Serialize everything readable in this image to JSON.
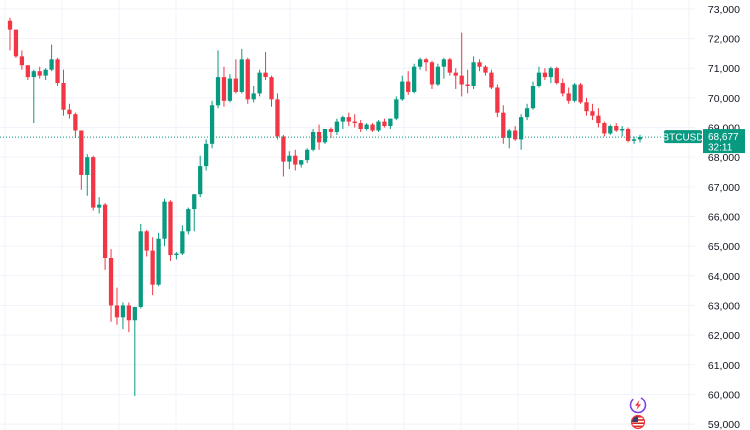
{
  "chart_data": {
    "type": "candlestick",
    "symbol": "BTCUSD",
    "last_price": "68,677",
    "countdown": "32:11",
    "ylim": [
      58800,
      73300
    ],
    "y_ticks": [
      "59,000",
      "60,000",
      "61,000",
      "62,000",
      "63,000",
      "64,000",
      "65,000",
      "66,000",
      "67,000",
      "68,000",
      "69,000",
      "70,000",
      "71,000",
      "72,000",
      "73,000"
    ],
    "y_tick_values": [
      59000,
      60000,
      61000,
      62000,
      63000,
      64000,
      65000,
      66000,
      67000,
      68000,
      69000,
      70000,
      71000,
      72000,
      73000
    ],
    "grid": true,
    "colors": {
      "up": "#089981",
      "down": "#f23645",
      "grid": "#f0f3fa",
      "price_line": "#089981"
    },
    "candles": [
      [
        72600,
        72700,
        71600,
        72300
      ],
      [
        72300,
        72300,
        71350,
        71400
      ],
      [
        71400,
        71600,
        70950,
        71100
      ],
      [
        71100,
        71100,
        70600,
        70700
      ],
      [
        70700,
        70950,
        69150,
        70900
      ],
      [
        70900,
        71050,
        70650,
        70750
      ],
      [
        70750,
        71000,
        70600,
        70950
      ],
      [
        70950,
        71800,
        70900,
        71300
      ],
      [
        71300,
        71350,
        70400,
        70500
      ],
      [
        70500,
        70950,
        69400,
        69600
      ],
      [
        69600,
        69800,
        69300,
        69450
      ],
      [
        69450,
        69500,
        68650,
        68900
      ],
      [
        68900,
        68900,
        66900,
        67400
      ],
      [
        67400,
        68100,
        66700,
        68000
      ],
      [
        68000,
        68050,
        66200,
        66300
      ],
      [
        66300,
        66650,
        66100,
        66400
      ],
      [
        66400,
        66450,
        64200,
        64600
      ],
      [
        64600,
        64900,
        62450,
        63000
      ],
      [
        63000,
        63600,
        62350,
        62600
      ],
      [
        62600,
        63100,
        62200,
        63000
      ],
      [
        63000,
        63100,
        62100,
        62500
      ],
      [
        62500,
        62950,
        59950,
        62950
      ],
      [
        62950,
        65750,
        62900,
        65500
      ],
      [
        65500,
        65550,
        64650,
        64850
      ],
      [
        64850,
        65300,
        63350,
        63700
      ],
      [
        63700,
        65450,
        63650,
        65250
      ],
      [
        65250,
        66600,
        65000,
        66500
      ],
      [
        66500,
        66550,
        64500,
        64700
      ],
      [
        64700,
        64800,
        64550,
        64750
      ],
      [
        64750,
        65700,
        64700,
        65500
      ],
      [
        65500,
        66300,
        65400,
        66250
      ],
      [
        66250,
        66750,
        65500,
        66750
      ],
      [
        66750,
        68050,
        66650,
        67700
      ],
      [
        67700,
        68600,
        67550,
        68450
      ],
      [
        68450,
        69900,
        68300,
        69750
      ],
      [
        69750,
        71600,
        69650,
        70700
      ],
      [
        70700,
        71050,
        69700,
        69900
      ],
      [
        69900,
        70800,
        69850,
        70650
      ],
      [
        70650,
        71300,
        70150,
        70200
      ],
      [
        70200,
        71650,
        70150,
        71300
      ],
      [
        71300,
        71350,
        69800,
        69950
      ],
      [
        69950,
        70400,
        69850,
        70150
      ],
      [
        70150,
        70950,
        70050,
        70850
      ],
      [
        70850,
        71550,
        70600,
        70700
      ],
      [
        70700,
        70750,
        69700,
        69950
      ],
      [
        69950,
        70150,
        68600,
        68700
      ],
      [
        68700,
        68750,
        67350,
        67850
      ],
      [
        67850,
        68200,
        67600,
        68050
      ],
      [
        68050,
        68250,
        67550,
        67750
      ],
      [
        67750,
        67900,
        67650,
        67900
      ],
      [
        67900,
        68300,
        67800,
        68250
      ],
      [
        68250,
        68950,
        68200,
        68850
      ],
      [
        68850,
        69100,
        68250,
        68500
      ],
      [
        68500,
        68950,
        68450,
        68950
      ],
      [
        68950,
        69000,
        68650,
        68850
      ],
      [
        68850,
        69300,
        68750,
        69200
      ],
      [
        69200,
        69400,
        68950,
        69350
      ],
      [
        69350,
        69500,
        69050,
        69200
      ],
      [
        69200,
        69450,
        69000,
        69150
      ],
      [
        69150,
        69250,
        68850,
        68950
      ],
      [
        68950,
        69150,
        68900,
        69100
      ],
      [
        69100,
        69150,
        68850,
        68900
      ],
      [
        68900,
        69250,
        68850,
        69200
      ],
      [
        69200,
        69300,
        69000,
        69050
      ],
      [
        69050,
        69300,
        68950,
        69300
      ],
      [
        69300,
        70050,
        69250,
        69950
      ],
      [
        69950,
        70750,
        69900,
        70550
      ],
      [
        70550,
        70900,
        70100,
        70200
      ],
      [
        70200,
        71150,
        70150,
        71050
      ],
      [
        71050,
        71350,
        70950,
        71300
      ],
      [
        71300,
        71350,
        70900,
        71200
      ],
      [
        71200,
        71250,
        70300,
        70450
      ],
      [
        70450,
        71150,
        70400,
        71050
      ],
      [
        71050,
        71350,
        70650,
        71300
      ],
      [
        71300,
        71350,
        70750,
        70850
      ],
      [
        70850,
        71000,
        70300,
        70750
      ],
      [
        70750,
        72200,
        70050,
        70450
      ],
      [
        70450,
        70950,
        70150,
        70400
      ],
      [
        70400,
        71400,
        70300,
        71200
      ],
      [
        71200,
        71300,
        70900,
        71050
      ],
      [
        71050,
        71100,
        70750,
        70850
      ],
      [
        70850,
        70950,
        70300,
        70350
      ],
      [
        70350,
        70450,
        69350,
        69500
      ],
      [
        69500,
        69750,
        68450,
        68650
      ],
      [
        68650,
        68950,
        68300,
        68900
      ],
      [
        68900,
        69050,
        68550,
        68600
      ],
      [
        68600,
        69450,
        68250,
        69350
      ],
      [
        69350,
        69800,
        69250,
        69650
      ],
      [
        69650,
        70550,
        69600,
        70400
      ],
      [
        70400,
        71050,
        70350,
        70850
      ],
      [
        70850,
        71000,
        70600,
        70700
      ],
      [
        70700,
        71050,
        70500,
        71000
      ],
      [
        71000,
        71050,
        70450,
        70500
      ],
      [
        70500,
        70650,
        70050,
        70150
      ],
      [
        70150,
        70350,
        69800,
        69900
      ],
      [
        69900,
        70500,
        69850,
        70450
      ],
      [
        70450,
        70500,
        69800,
        69850
      ],
      [
        69850,
        70000,
        69400,
        69550
      ],
      [
        69550,
        69800,
        69250,
        69400
      ],
      [
        69400,
        69650,
        69000,
        69150
      ],
      [
        69150,
        69200,
        68700,
        68800
      ],
      [
        68800,
        69100,
        68750,
        69050
      ],
      [
        69050,
        69150,
        68850,
        68900
      ],
      [
        68900,
        69050,
        68700,
        68950
      ],
      [
        68950,
        69000,
        68500,
        68550
      ],
      [
        68550,
        68700,
        68450,
        68600
      ],
      [
        68600,
        68750,
        68500,
        68677
      ]
    ]
  },
  "icons": {
    "flash": "lightning-badge-icon",
    "flag": "us-flag-icon"
  }
}
